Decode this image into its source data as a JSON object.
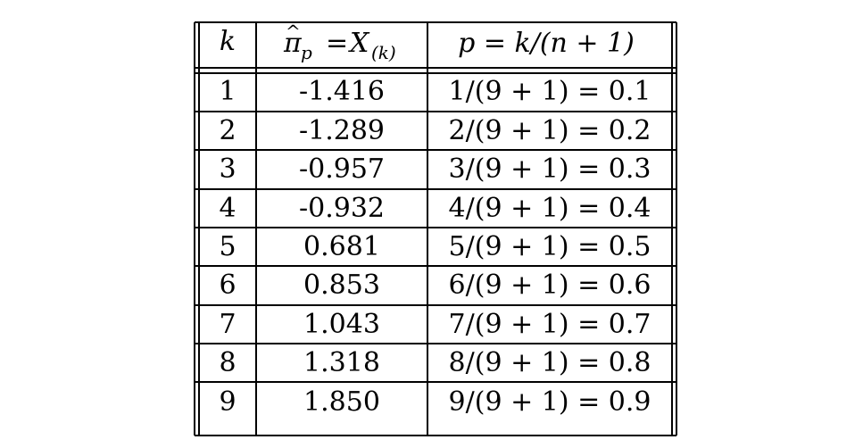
{
  "table": {
    "header": {
      "k": "k",
      "pi_base": "π",
      "pi_hat": "^",
      "pi_sub": "p",
      "equals": "=",
      "x_base": "X",
      "x_sub": "(k)",
      "p_formula": "p = k/(n + 1)"
    },
    "rows": [
      {
        "k": "1",
        "x": "-1.416",
        "p": "1/(9 + 1) = 0.1"
      },
      {
        "k": "2",
        "x": "-1.289",
        "p": "2/(9 + 1) = 0.2"
      },
      {
        "k": "3",
        "x": "-0.957",
        "p": "3/(9 + 1) = 0.3"
      },
      {
        "k": "4",
        "x": "-0.932",
        "p": "4/(9 + 1) = 0.4"
      },
      {
        "k": "5",
        "x": "0.681",
        "p": "5/(9 + 1) = 0.5"
      },
      {
        "k": "6",
        "x": "0.853",
        "p": "6/(9 + 1) = 0.6"
      },
      {
        "k": "7",
        "x": "1.043",
        "p": "7/(9 + 1) = 0.7"
      },
      {
        "k": "8",
        "x": "1.318",
        "p": "8/(9 + 1) = 0.8"
      },
      {
        "k": "9",
        "x": "1.850",
        "p": "9/(9 + 1) = 0.9"
      }
    ]
  }
}
